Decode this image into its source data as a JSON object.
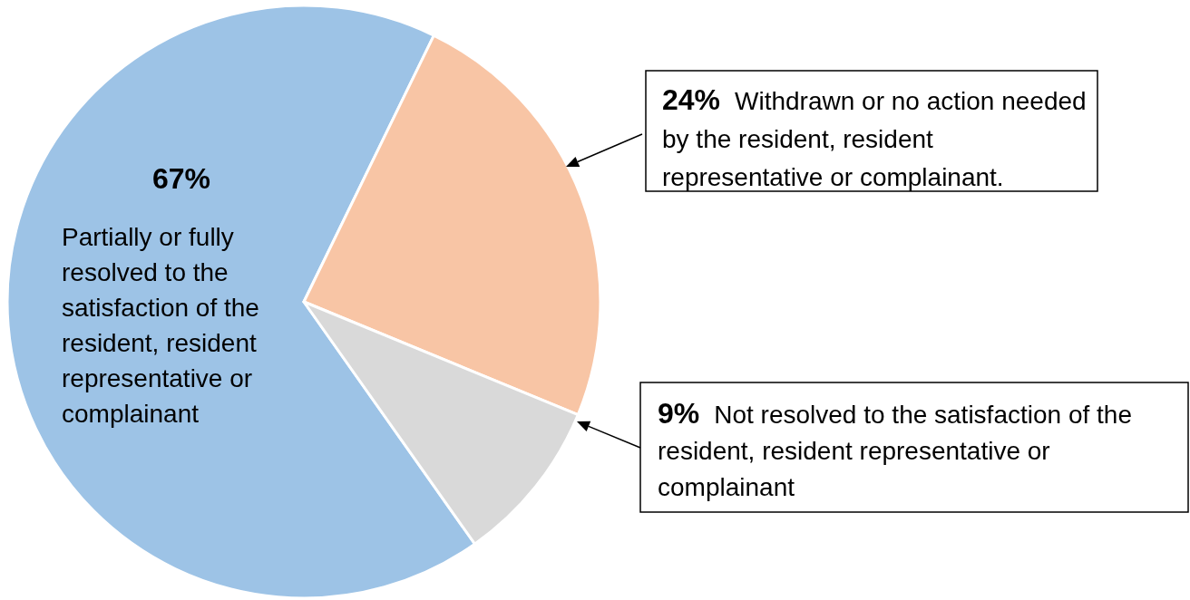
{
  "chart_data": {
    "type": "pie",
    "categories": [
      "Partially or fully resolved to the satisfaction of the resident, resident representative or complainant",
      "Withdrawn or no action needed by the resident, resident representative or complainant.",
      "Not resolved to the satisfaction of the resident, resident representative or complainant"
    ],
    "values": [
      67,
      24,
      9
    ],
    "colors": [
      "#9dc3e6",
      "#f8c5a5",
      "#d9d9d9"
    ],
    "value_labels": [
      "67%",
      "24%",
      "9%"
    ]
  }
}
